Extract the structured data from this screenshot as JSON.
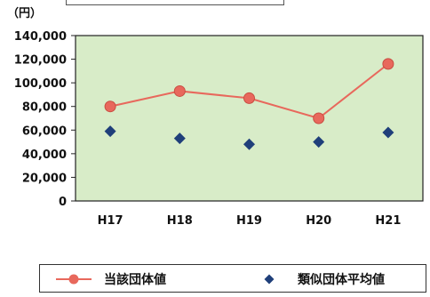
{
  "chart_data": {
    "type": "line",
    "unit_label": "（円）",
    "categories": [
      "H17",
      "H18",
      "H19",
      "H20",
      "H21"
    ],
    "ylim": [
      0,
      140000
    ],
    "yticks": [
      "140,000",
      "120,000",
      "100,000",
      "80,000",
      "60,000",
      "40,000",
      "20,000",
      "0"
    ],
    "ytick_values": [
      140000,
      120000,
      100000,
      80000,
      60000,
      40000,
      20000,
      0
    ],
    "grid": false,
    "background_color": "#d8ecc8",
    "series": [
      {
        "name": "当該団体値",
        "marker": "circle",
        "color": "#e8685c",
        "line": true,
        "values": [
          80000,
          93000,
          87000,
          70000,
          116000
        ]
      },
      {
        "name": "類似団体平均値",
        "marker": "diamond",
        "color": "#1f3f7a",
        "line": false,
        "values": [
          59000,
          53000,
          48000,
          50000,
          58000
        ]
      }
    ],
    "legend_position": "bottom"
  }
}
